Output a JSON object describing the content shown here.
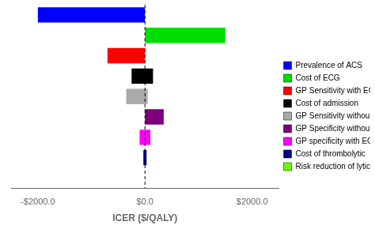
{
  "chart_data": {
    "type": "bar",
    "orientation": "horizontal",
    "xlabel": "ICER ($/QALY)",
    "categories": [
      "Prevalence of ACS",
      "Cost of ECG",
      "GP Sensitivity with ECG",
      "Cost of admission",
      "GP Sensitivity without ECG",
      "GP Specificity without ECG",
      "GP specificity with ECG",
      "Cost of thrombolytic",
      "Risk reduction of lytic"
    ],
    "values": [
      [
        -2000,
        0
      ],
      [
        0,
        1500
      ],
      [
        -700,
        0
      ],
      [
        -250,
        150
      ],
      [
        -350,
        50
      ],
      [
        0,
        350
      ],
      [
        -100,
        100
      ],
      [
        -30,
        30
      ],
      [
        0,
        0
      ]
    ],
    "colors": [
      "#0000FF",
      "#00DD00",
      "#FF0000",
      "#000000",
      "#AAAAAA",
      "#7B0079",
      "#FF00FF",
      "#000080",
      "#66FF00"
    ],
    "xlim": [
      -2500,
      2500
    ],
    "xticks": [
      {
        "value": -2000,
        "label": "-$2000.0"
      },
      {
        "value": 0,
        "label": "$0.0"
      },
      {
        "value": 2000,
        "label": "$2000.0"
      }
    ],
    "grid": false,
    "legend": "right",
    "tick_labels": "x"
  }
}
